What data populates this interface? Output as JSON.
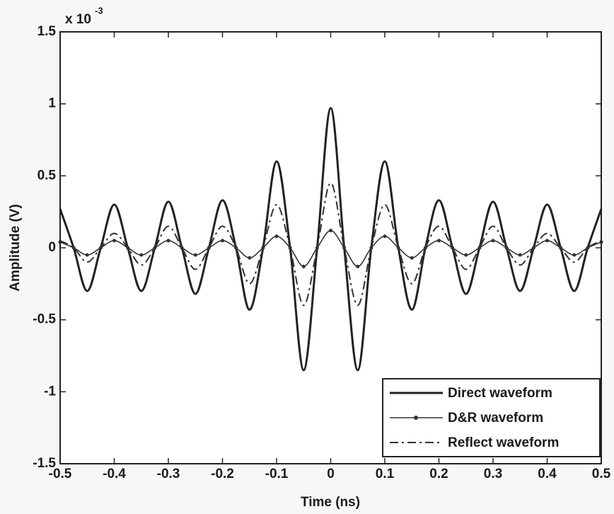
{
  "chart_data": {
    "type": "line",
    "x_label": "Time (ns)",
    "y_label": "Amplitude (V)",
    "y_multiplier": "x 10",
    "y_multiplier_exponent": "-3",
    "x": [
      -0.5,
      -0.475,
      -0.45,
      -0.425,
      -0.4,
      -0.375,
      -0.35,
      -0.325,
      -0.3,
      -0.275,
      -0.25,
      -0.225,
      -0.2,
      -0.175,
      -0.15,
      -0.125,
      -0.1,
      -0.075,
      -0.05,
      -0.025,
      0,
      0.025,
      0.05,
      0.075,
      0.1,
      0.125,
      0.15,
      0.175,
      0.2,
      0.225,
      0.25,
      0.275,
      0.3,
      0.325,
      0.35,
      0.375,
      0.4,
      0.425,
      0.45,
      0.475,
      0.5
    ],
    "series": [
      {
        "name": "Direct waveform",
        "color": "#222222",
        "style": "solid",
        "values": [
          0.27,
          0,
          -0.3,
          0,
          0.3,
          0,
          -0.3,
          0,
          0.32,
          0,
          -0.32,
          0,
          0.33,
          0,
          -0.43,
          0,
          0.6,
          0,
          -0.85,
          0,
          0.97,
          0,
          -0.85,
          0,
          0.6,
          0,
          -0.43,
          0,
          0.33,
          0,
          -0.32,
          0,
          0.32,
          0,
          -0.3,
          0,
          0.3,
          0,
          -0.3,
          0,
          0.27
        ]
      },
      {
        "name": "D&R waveform",
        "color": "#333333",
        "style": "marker",
        "values": [
          0.04,
          0,
          -0.05,
          0,
          0.05,
          0,
          -0.05,
          0,
          0.05,
          0,
          -0.05,
          0,
          0.05,
          0,
          -0.07,
          0,
          0.08,
          0,
          -0.13,
          0,
          0.12,
          0,
          -0.13,
          0,
          0.08,
          0,
          -0.07,
          0,
          0.05,
          0,
          -0.05,
          0,
          0.05,
          0,
          -0.05,
          0,
          0.05,
          0,
          -0.05,
          0,
          0.04
        ]
      },
      {
        "name": "Reflect waveform",
        "color": "#333333",
        "style": "dashdot",
        "values": [
          0.05,
          0,
          -0.1,
          0,
          0.1,
          0,
          -0.12,
          0,
          0.15,
          0,
          -0.15,
          0,
          0.15,
          0,
          -0.25,
          0,
          0.3,
          0,
          -0.4,
          0,
          0.45,
          0,
          -0.4,
          0,
          0.3,
          0,
          -0.25,
          0,
          0.15,
          0,
          -0.15,
          0,
          0.15,
          0,
          -0.12,
          0,
          0.1,
          0,
          -0.1,
          0,
          0.05
        ]
      }
    ],
    "xlim": [
      -0.5,
      0.5
    ],
    "xticks": [
      -0.5,
      -0.4,
      -0.3,
      -0.2,
      -0.1,
      0,
      0.1,
      0.2,
      0.3,
      0.4,
      0.5
    ],
    "ylim": [
      -1.5,
      1.5
    ],
    "yticks": [
      -1.5,
      -1,
      -0.5,
      0,
      0.5,
      1,
      1.5
    ],
    "legend": "lower right"
  }
}
